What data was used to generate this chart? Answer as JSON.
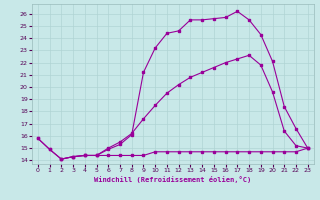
{
  "xlabel": "Windchill (Refroidissement éolien,°C)",
  "xlim": [
    -0.5,
    23.5
  ],
  "ylim": [
    13.7,
    26.8
  ],
  "xticks": [
    0,
    1,
    2,
    3,
    4,
    5,
    6,
    7,
    8,
    9,
    10,
    11,
    12,
    13,
    14,
    15,
    16,
    17,
    18,
    19,
    20,
    21,
    22,
    23
  ],
  "yticks": [
    14,
    15,
    16,
    17,
    18,
    19,
    20,
    21,
    22,
    23,
    24,
    25,
    26
  ],
  "bg_color": "#c8e8e8",
  "line_color": "#990099",
  "grid_color": "#b0d4d4",
  "line1_x": [
    0,
    1,
    2,
    3,
    4,
    5,
    6,
    7,
    8,
    9,
    10,
    11,
    12,
    13,
    14,
    15,
    16,
    17,
    18,
    19,
    20,
    21,
    22,
    23
  ],
  "line1_y": [
    15.8,
    14.9,
    14.1,
    14.3,
    14.4,
    14.4,
    14.4,
    14.4,
    14.4,
    14.4,
    14.7,
    14.7,
    14.7,
    14.7,
    14.7,
    14.7,
    14.7,
    14.7,
    14.7,
    14.7,
    14.7,
    14.7,
    14.7,
    15.0
  ],
  "line2_x": [
    0,
    1,
    2,
    3,
    4,
    5,
    6,
    7,
    8,
    9,
    10,
    11,
    12,
    13,
    14,
    15,
    16,
    17,
    18,
    19,
    20,
    21,
    22,
    23
  ],
  "line2_y": [
    15.8,
    14.9,
    14.1,
    14.3,
    14.4,
    14.4,
    15.0,
    15.5,
    16.2,
    17.4,
    18.5,
    19.5,
    20.2,
    20.8,
    21.2,
    21.6,
    22.0,
    22.3,
    22.6,
    21.8,
    19.6,
    16.4,
    15.2,
    15.0
  ],
  "line3_x": [
    2,
    3,
    4,
    5,
    6,
    7,
    8,
    9,
    10,
    11,
    12,
    13,
    14,
    15,
    16,
    17,
    18,
    19,
    20,
    21,
    22,
    23
  ],
  "line3_y": [
    14.1,
    14.3,
    14.4,
    14.4,
    14.9,
    15.3,
    16.1,
    21.2,
    23.2,
    24.4,
    24.6,
    25.5,
    25.5,
    25.6,
    25.7,
    26.2,
    25.5,
    24.3,
    22.1,
    18.4,
    16.6,
    15.0
  ]
}
